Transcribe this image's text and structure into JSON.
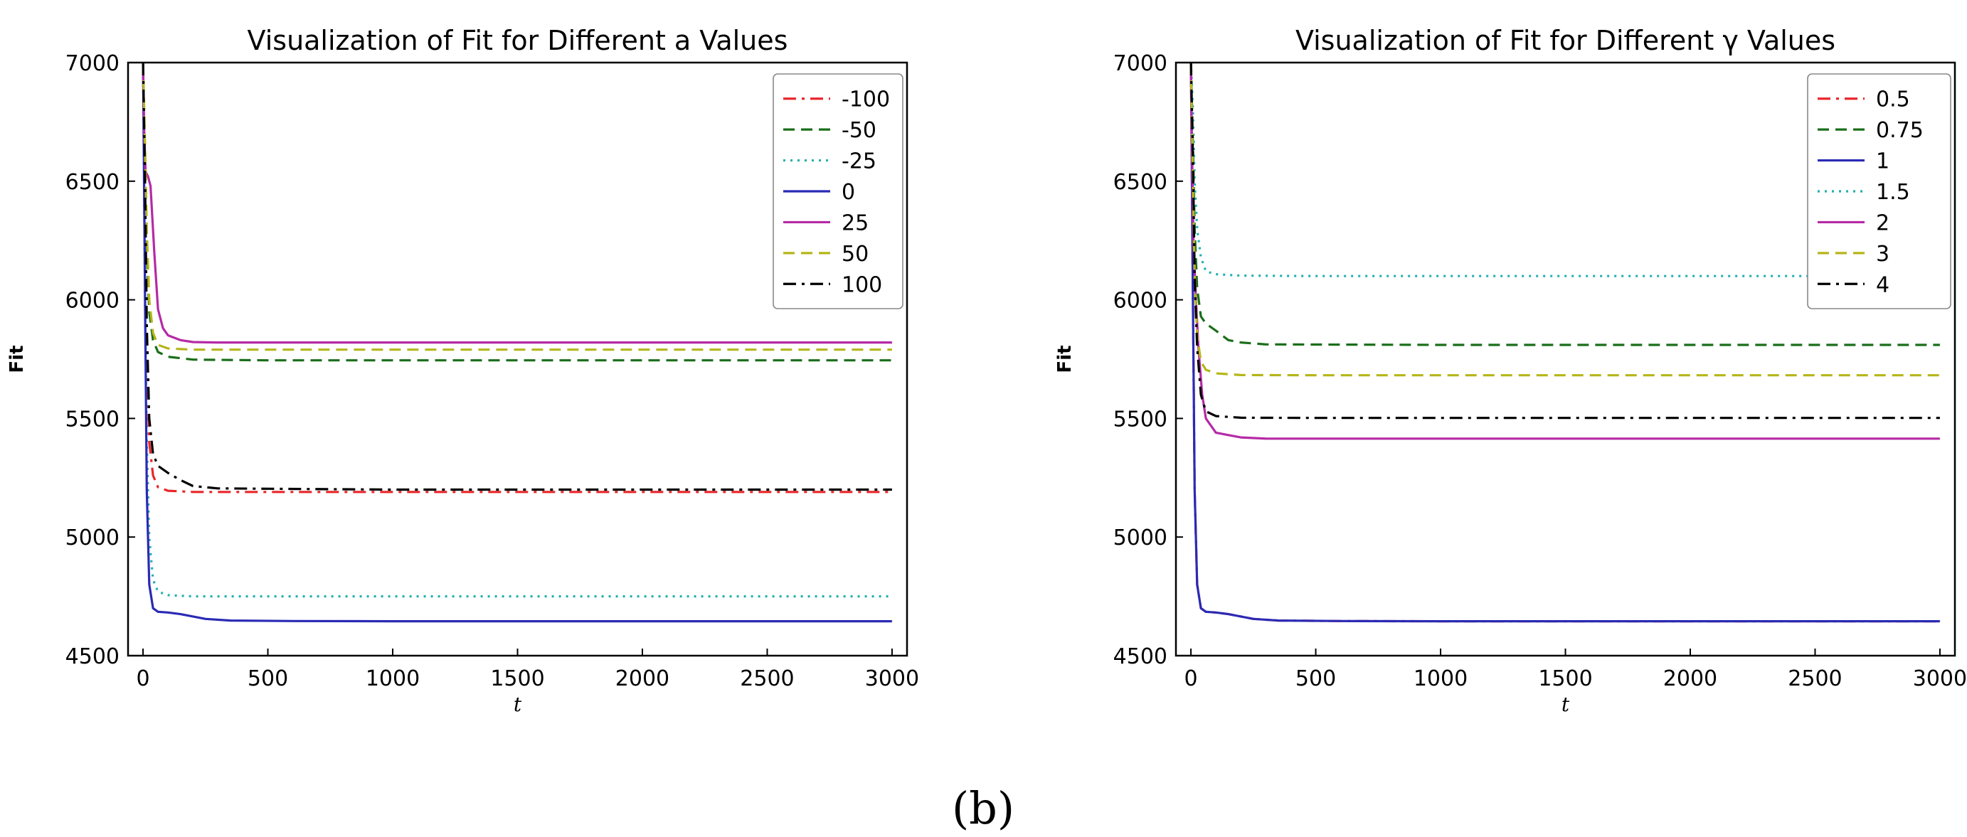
{
  "chart_data": [
    {
      "type": "line",
      "title": "Visualization of Fit for Different a Values",
      "xlabel": "t",
      "ylabel": "Fit",
      "xlim": [
        -60,
        3060
      ],
      "ylim": [
        4500,
        7000
      ],
      "xticks": [
        0,
        500,
        1000,
        1500,
        2000,
        2500,
        3000
      ],
      "yticks": [
        4500,
        5000,
        5500,
        6000,
        6500,
        7000
      ],
      "legend_position": "top-right",
      "series": [
        {
          "name": "-100",
          "color": "#e8262a",
          "style": "dashdot",
          "x": [
            0,
            8,
            15,
            25,
            40,
            60,
            100,
            200,
            500,
            1000,
            3000
          ],
          "values": [
            7000,
            6400,
            5800,
            5400,
            5260,
            5210,
            5195,
            5190,
            5190,
            5190,
            5190
          ]
        },
        {
          "name": "-50",
          "color": "#1a6e1a",
          "style": "dashed",
          "x": [
            0,
            8,
            15,
            25,
            40,
            60,
            100,
            200,
            500,
            1000,
            3000
          ],
          "values": [
            7000,
            6600,
            6200,
            5950,
            5830,
            5780,
            5760,
            5748,
            5745,
            5745,
            5745
          ]
        },
        {
          "name": "-25",
          "color": "#22b0b0",
          "style": "dotted",
          "x": [
            0,
            8,
            15,
            25,
            40,
            60,
            100,
            200,
            500,
            1000,
            3000
          ],
          "values": [
            7000,
            6000,
            5400,
            5000,
            4820,
            4770,
            4755,
            4750,
            4750,
            4750,
            4750
          ]
        },
        {
          "name": "0",
          "color": "#2a2ab5",
          "style": "solid",
          "x": [
            0,
            8,
            15,
            25,
            40,
            60,
            100,
            150,
            250,
            350,
            600,
            1000,
            3000
          ],
          "values": [
            7000,
            6000,
            5200,
            4800,
            4700,
            4685,
            4682,
            4675,
            4655,
            4648,
            4646,
            4645,
            4645
          ]
        },
        {
          "name": "25",
          "color": "#b52aa5",
          "style": "solid",
          "x": [
            0,
            5,
            10,
            20,
            30,
            45,
            60,
            80,
            100,
            150,
            200,
            300,
            1000,
            3000
          ],
          "values": [
            7000,
            6700,
            6540,
            6520,
            6480,
            6200,
            5960,
            5880,
            5850,
            5830,
            5822,
            5820,
            5820,
            5820
          ]
        },
        {
          "name": "50",
          "color": "#b5b51a",
          "style": "dashed",
          "x": [
            0,
            8,
            15,
            25,
            40,
            60,
            100,
            200,
            500,
            1000,
            3000
          ],
          "values": [
            7000,
            6650,
            6300,
            6000,
            5860,
            5810,
            5795,
            5790,
            5790,
            5790,
            5790
          ]
        },
        {
          "name": "100",
          "color": "#000000",
          "style": "dashdot",
          "x": [
            0,
            8,
            15,
            25,
            40,
            60,
            100,
            150,
            200,
            300,
            1000,
            3000
          ],
          "values": [
            7000,
            6500,
            5900,
            5500,
            5350,
            5300,
            5270,
            5240,
            5215,
            5205,
            5200,
            5200
          ]
        }
      ]
    },
    {
      "type": "line",
      "title": "Visualization of Fit for Different γ Values",
      "xlabel": "t",
      "ylabel": "Fit",
      "xlim": [
        -60,
        3060
      ],
      "ylim": [
        4500,
        7000
      ],
      "xticks": [
        0,
        500,
        1000,
        1500,
        2000,
        2500,
        3000
      ],
      "yticks": [
        4500,
        5000,
        5500,
        6000,
        6500,
        7000
      ],
      "legend_position": "top-right",
      "series": [
        {
          "name": "0.5",
          "color": "#e8262a",
          "style": "dashdot",
          "x": [
            0,
            8,
            15,
            25,
            40,
            60,
            100,
            150,
            250,
            350,
            600,
            1000,
            3000
          ],
          "values": [
            7000,
            6000,
            5200,
            4800,
            4700,
            4685,
            4682,
            4675,
            4655,
            4648,
            4646,
            4645,
            4645
          ]
        },
        {
          "name": "0.75",
          "color": "#1a6e1a",
          "style": "dashed",
          "x": [
            0,
            8,
            15,
            25,
            40,
            60,
            100,
            150,
            200,
            300,
            1000,
            3000
          ],
          "values": [
            7000,
            6650,
            6300,
            6050,
            5930,
            5900,
            5870,
            5830,
            5820,
            5812,
            5810,
            5810
          ]
        },
        {
          "name": "1",
          "color": "#2a2ab5",
          "style": "solid",
          "x": [
            0,
            8,
            15,
            25,
            40,
            60,
            100,
            150,
            250,
            350,
            600,
            1000,
            3000
          ],
          "values": [
            7000,
            6000,
            5200,
            4800,
            4700,
            4685,
            4682,
            4675,
            4655,
            4648,
            4646,
            4645,
            4645
          ]
        },
        {
          "name": "1.5",
          "color": "#22b0b0",
          "style": "dotted",
          "x": [
            0,
            8,
            15,
            25,
            40,
            60,
            100,
            200,
            500,
            1000,
            3000
          ],
          "values": [
            7000,
            6800,
            6500,
            6300,
            6180,
            6120,
            6108,
            6102,
            6100,
            6100,
            6100
          ]
        },
        {
          "name": "2",
          "color": "#b52aa5",
          "style": "solid",
          "x": [
            0,
            5,
            10,
            20,
            30,
            45,
            60,
            100,
            150,
            200,
            300,
            1000,
            3000
          ],
          "values": [
            7000,
            6600,
            6250,
            6000,
            5800,
            5600,
            5500,
            5440,
            5430,
            5420,
            5415,
            5415,
            5415
          ]
        },
        {
          "name": "3",
          "color": "#b5b51a",
          "style": "dashed",
          "x": [
            0,
            8,
            15,
            25,
            40,
            60,
            100,
            200,
            500,
            1000,
            3000
          ],
          "values": [
            7000,
            6500,
            6100,
            5850,
            5740,
            5705,
            5690,
            5683,
            5682,
            5682,
            5682
          ]
        },
        {
          "name": "4",
          "color": "#000000",
          "style": "dashdot",
          "x": [
            0,
            8,
            15,
            25,
            40,
            60,
            100,
            200,
            500,
            1000,
            3000
          ],
          "values": [
            7000,
            6600,
            6100,
            5800,
            5600,
            5530,
            5510,
            5503,
            5502,
            5502,
            5502
          ]
        }
      ]
    }
  ],
  "caption": "(b)"
}
